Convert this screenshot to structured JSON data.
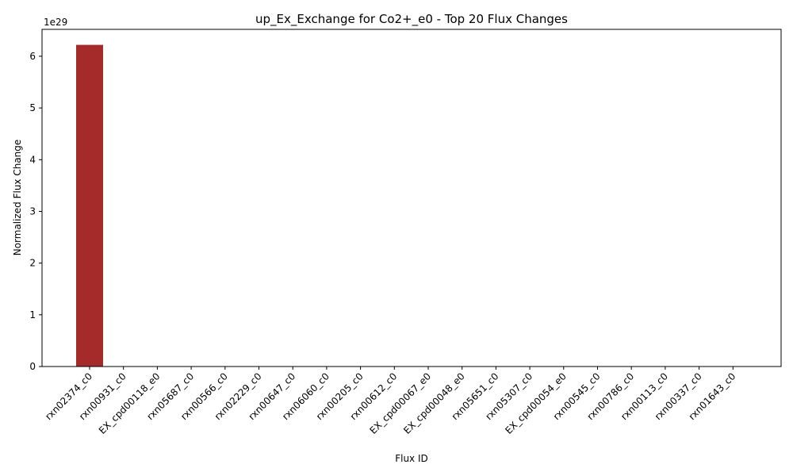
{
  "chart_data": {
    "type": "bar",
    "title": "up_Ex_Exchange for Co2+_e0 - Top 20 Flux Changes",
    "xlabel": "Flux ID",
    "ylabel": "Normalized Flux Change",
    "offset_text": "1e29",
    "scale": 1e+29,
    "ylim": [
      0,
      6.52
    ],
    "yticks": [
      0,
      1,
      2,
      3,
      4,
      5,
      6
    ],
    "ytick_labels": [
      "0",
      "1",
      "2",
      "3",
      "4",
      "5",
      "6"
    ],
    "grid": false,
    "legend": "none",
    "bar_color": "#a52a2a",
    "categories": [
      "rxn02374_c0",
      "rxn00931_c0",
      "EX_cpd00118_e0",
      "rxn05687_c0",
      "rxn00566_c0",
      "rxn02229_c0",
      "rxn00647_c0",
      "rxn06060_c0",
      "rxn00205_c0",
      "rxn00612_c0",
      "EX_cpd00067_e0",
      "EX_cpd00048_e0",
      "rxn05651_c0",
      "rxn05307_c0",
      "EX_cpd00054_e0",
      "rxn00545_c0",
      "rxn00786_c0",
      "rxn00113_c0",
      "rxn00337_c0",
      "rxn01643_c0"
    ],
    "values": [
      6.22,
      0,
      0,
      0,
      0,
      0,
      0,
      0,
      0,
      0,
      0,
      0,
      0,
      0,
      0,
      0,
      0,
      0,
      0,
      0
    ]
  }
}
